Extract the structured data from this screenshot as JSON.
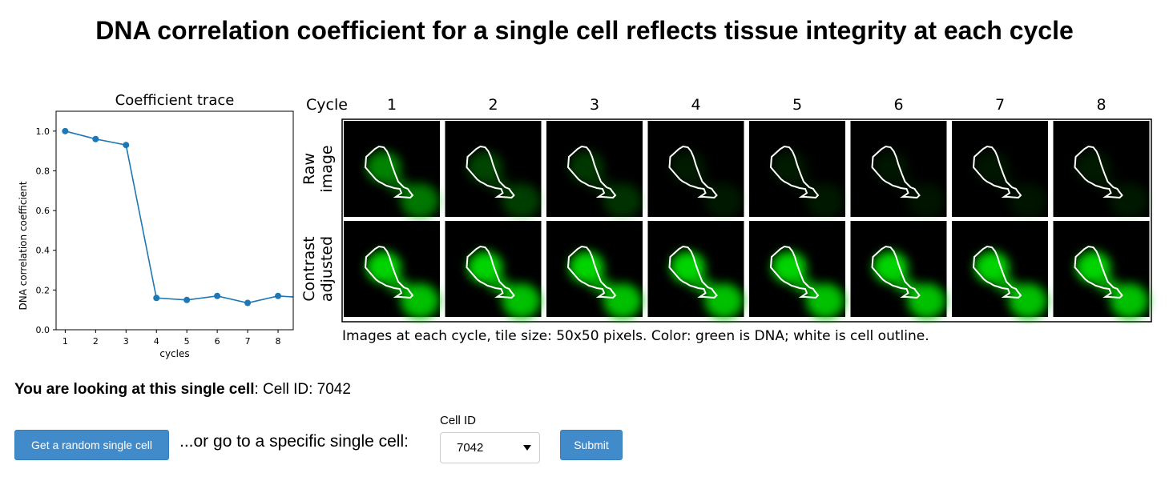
{
  "page": {
    "title": "DNA correlation coefficient for a single cell reflects tissue integrity at each cycle"
  },
  "chart_data": {
    "type": "line",
    "title": "Coefficient trace",
    "xlabel": "cycles",
    "ylabel": "DNA correlation coefficient",
    "x": [
      1,
      2,
      3,
      4,
      5,
      6,
      7,
      8,
      9
    ],
    "values": [
      1.0,
      0.96,
      0.93,
      0.16,
      0.15,
      0.17,
      0.135,
      0.17,
      0.16
    ],
    "xticks": [
      "1",
      "2",
      "3",
      "4",
      "5",
      "6",
      "7",
      "8"
    ],
    "yticks": [
      "0.0",
      "0.2",
      "0.4",
      "0.6",
      "0.8",
      "1.0"
    ],
    "xlim": [
      0.7,
      8.5
    ],
    "ylim": [
      0.0,
      1.1
    ],
    "grid": false,
    "color": "#1f77b4"
  },
  "image_grid": {
    "header_label": "Cycle",
    "cycles": [
      "1",
      "2",
      "3",
      "4",
      "5",
      "6",
      "7",
      "8"
    ],
    "row_labels": [
      [
        "Raw",
        "image"
      ],
      [
        "Contrast",
        "adjusted"
      ]
    ],
    "raw_intensity": [
      0.62,
      0.32,
      0.26,
      0.12,
      0.12,
      0.1,
      0.1,
      0.12
    ],
    "adjusted_intensity": [
      1.0,
      1.0,
      1.0,
      1.0,
      1.0,
      1.0,
      1.0,
      1.0
    ],
    "caption": "Images at each cycle, tile size: 50x50 pixels. Color: green is DNA; white is cell outline.",
    "dna_color": "#00ff00",
    "outline_color": "#ffffff"
  },
  "cell_info": {
    "lead": "You are looking at this single cell",
    "value": ": Cell ID: 7042"
  },
  "controls": {
    "random_button": "Get a random single cell",
    "goto_text": "...or go to a specific single cell:",
    "cellid_label": "Cell ID",
    "cellid_value": "7042",
    "submit_button": "Submit",
    "button_color": "#428bca"
  }
}
